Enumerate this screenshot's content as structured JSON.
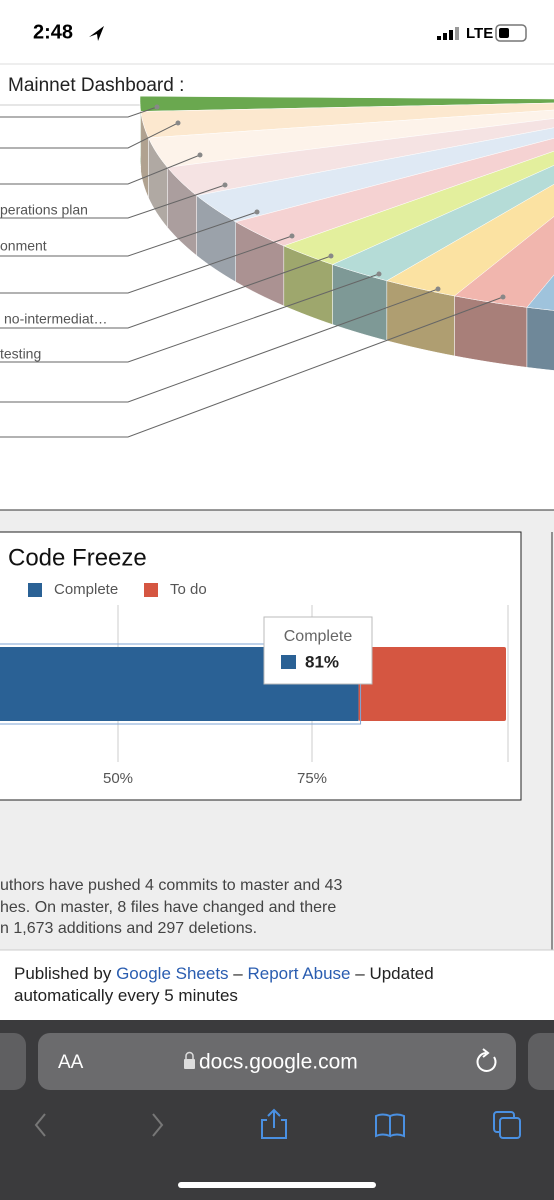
{
  "status_bar": {
    "time": "2:48",
    "network": "LTE"
  },
  "header": {
    "title": "Mainnet Dashboard :"
  },
  "pie_labels": [
    "perations plan",
    "onment",
    "no-intermediat…",
    "testing"
  ],
  "chart": {
    "type": "bar",
    "title": "Code Freeze",
    "series": [
      {
        "name": "Complete",
        "color": "#2a6195",
        "values": [
          81
        ],
        "value_labels": [
          "81%"
        ]
      },
      {
        "name": "To do",
        "color": "#d55641",
        "values": [
          19
        ]
      }
    ],
    "xlim": [
      0,
      100
    ],
    "xticks": [
      {
        "value": 50,
        "label": "50%"
      },
      {
        "value": 75,
        "label": "75%"
      }
    ]
  },
  "summary": [
    "uthors have pushed 4 commits to master and 43",
    "hes. On master, 8 files have changed and there",
    "n 1,673 additions and 297 deletions."
  ],
  "footer": {
    "published_by": "Published by",
    "google_sheets": "Google Sheets",
    "separator": "–",
    "report_abuse": "Report Abuse",
    "updated": "Updated automatically every 5 minutes"
  },
  "browser": {
    "text_size": "AA",
    "url": "docs.google.com"
  }
}
